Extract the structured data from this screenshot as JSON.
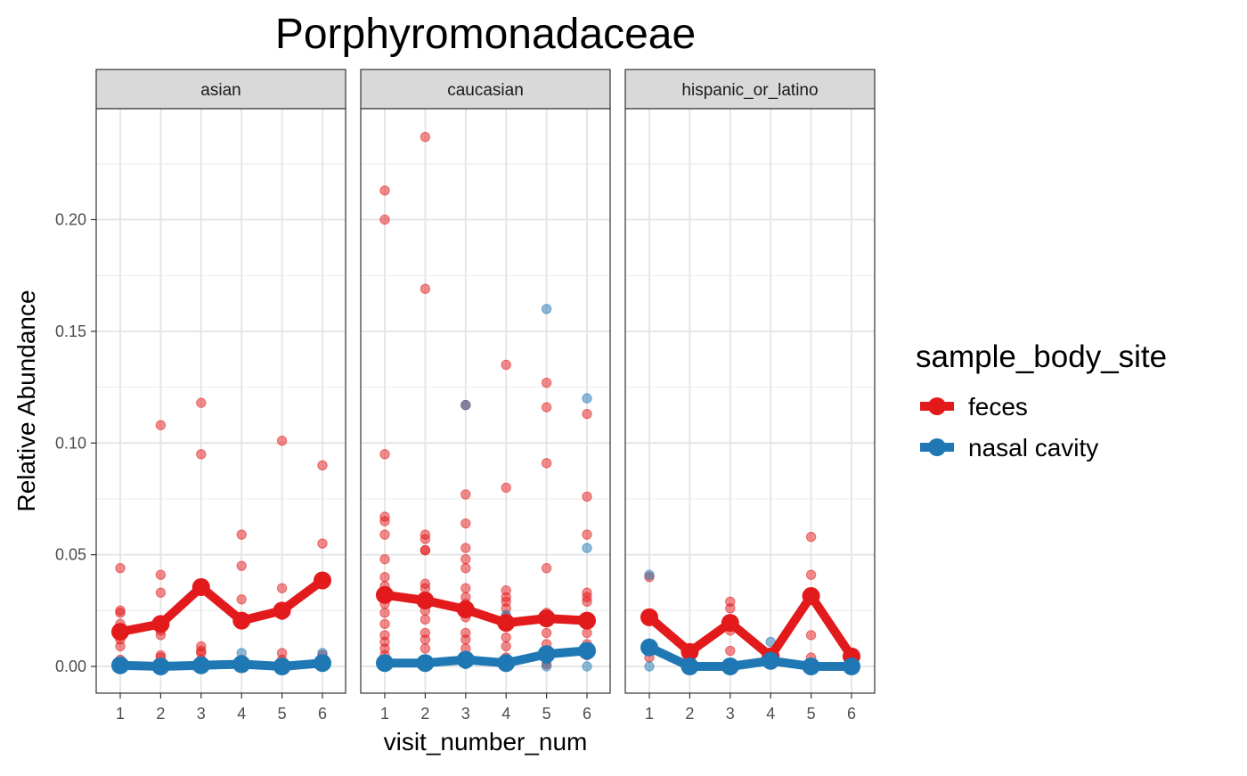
{
  "chart_data": {
    "type": "scatter",
    "title": "Porphyromonadaceae",
    "xlabel": "visit_number_num",
    "ylabel": "Relative Abundance",
    "legend_title": "sample_body_site",
    "legend_position": "right",
    "grid": true,
    "x_ticks": [
      1,
      2,
      3,
      4,
      5,
      6
    ],
    "y_ticks": [
      0.0,
      0.05,
      0.1,
      0.15,
      0.2
    ],
    "y_tick_labels": [
      "0.00",
      "0.05",
      "0.10",
      "0.15",
      "0.20"
    ],
    "ylim": [
      -0.012,
      0.25
    ],
    "xlim": [
      0.6,
      6.4
    ],
    "series_colors": {
      "feces": "#e31a1c",
      "nasal cavity": "#1f78b4"
    },
    "panels": [
      {
        "label": "asian",
        "lines": [
          {
            "name": "feces",
            "x": [
              1,
              2,
              3,
              4,
              5,
              6
            ],
            "y": [
              0.0155,
              0.019,
              0.0355,
              0.0205,
              0.025,
              0.0385
            ]
          },
          {
            "name": "nasal cavity",
            "x": [
              1,
              2,
              3,
              4,
              5,
              6
            ],
            "y": [
              0.0005,
              0.0,
              0.0005,
              0.001,
              0.0,
              0.0015
            ]
          }
        ],
        "points": [
          {
            "name": "feces",
            "x": [
              1,
              1,
              1,
              1,
              1,
              1,
              1,
              2,
              2,
              2,
              2,
              2,
              2,
              2,
              3,
              3,
              3,
              3,
              3,
              3,
              3,
              4,
              4,
              4,
              4,
              4,
              5,
              5,
              5,
              5,
              5,
              6,
              6,
              6,
              6,
              6
            ],
            "y": [
              0.044,
              0.025,
              0.024,
              0.019,
              0.012,
              0.009,
              0.003,
              0.108,
              0.041,
              0.033,
              0.016,
              0.014,
              0.005,
              0.004,
              0.118,
              0.095,
              0.035,
              0.009,
              0.007,
              0.006,
              0.003,
              0.059,
              0.045,
              0.03,
              0.019,
              0.003,
              0.101,
              0.035,
              0.023,
              0.006,
              0.003,
              0.09,
              0.055,
              0.038,
              0.005,
              0.002
            ]
          },
          {
            "name": "nasal cavity",
            "x": [
              1,
              1,
              2,
              3,
              3,
              4,
              4,
              5,
              6,
              6
            ],
            "y": [
              0.002,
              0.0,
              0.0,
              0.001,
              0.0,
              0.006,
              0.0,
              0.0,
              0.006,
              0.0
            ]
          }
        ]
      },
      {
        "label": "caucasian",
        "lines": [
          {
            "name": "feces",
            "x": [
              1,
              2,
              3,
              4,
              5,
              6
            ],
            "y": [
              0.032,
              0.0295,
              0.0255,
              0.0195,
              0.0215,
              0.0205
            ]
          },
          {
            "name": "nasal cavity",
            "x": [
              1,
              2,
              3,
              4,
              5,
              6
            ],
            "y": [
              0.0015,
              0.0015,
              0.003,
              0.0015,
              0.0055,
              0.007
            ]
          }
        ],
        "points": [
          {
            "name": "feces",
            "x": [
              1,
              1,
              1,
              1,
              1,
              1,
              1,
              1,
              1,
              1,
              1,
              1,
              1,
              1,
              1,
              1,
              1,
              2,
              2,
              2,
              2,
              2,
              2,
              2,
              2,
              2,
              2,
              2,
              2,
              2,
              2,
              3,
              3,
              3,
              3,
              3,
              3,
              3,
              3,
              3,
              3,
              3,
              3,
              3,
              3,
              4,
              4,
              4,
              4,
              4,
              4,
              4,
              4,
              4,
              4,
              4,
              5,
              5,
              5,
              5,
              5,
              5,
              5,
              5,
              5,
              5,
              6,
              6,
              6,
              6,
              6,
              6,
              6,
              6,
              6,
              6
            ],
            "y": [
              0.213,
              0.2,
              0.095,
              0.067,
              0.065,
              0.059,
              0.048,
              0.04,
              0.036,
              0.031,
              0.028,
              0.024,
              0.019,
              0.014,
              0.011,
              0.008,
              0.005,
              0.237,
              0.169,
              0.059,
              0.057,
              0.052,
              0.052,
              0.037,
              0.035,
              0.025,
              0.021,
              0.015,
              0.012,
              0.008,
              0.003,
              0.117,
              0.077,
              0.064,
              0.053,
              0.048,
              0.044,
              0.035,
              0.031,
              0.028,
              0.022,
              0.015,
              0.012,
              0.008,
              0.004,
              0.135,
              0.08,
              0.034,
              0.031,
              0.029,
              0.026,
              0.022,
              0.018,
              0.013,
              0.009,
              0.004,
              0.127,
              0.116,
              0.091,
              0.044,
              0.024,
              0.02,
              0.015,
              0.01,
              0.005,
              0.001,
              0.113,
              0.076,
              0.059,
              0.033,
              0.031,
              0.029,
              0.02,
              0.015,
              0.01,
              0.005
            ]
          },
          {
            "name": "nasal cavity",
            "x": [
              1,
              1,
              2,
              2,
              3,
              3,
              3,
              4,
              4,
              5,
              5,
              5,
              6,
              6,
              6
            ],
            "y": [
              0.002,
              0.0,
              0.003,
              0.0,
              0.117,
              0.004,
              0.001,
              0.023,
              0.0,
              0.16,
              0.003,
              0.0,
              0.12,
              0.053,
              0.0
            ]
          }
        ]
      },
      {
        "label": "hispanic_or_latino",
        "lines": [
          {
            "name": "feces",
            "x": [
              1,
              2,
              3,
              4,
              5,
              6
            ],
            "y": [
              0.022,
              0.0065,
              0.0195,
              0.0045,
              0.0315,
              0.0045
            ]
          },
          {
            "name": "nasal cavity",
            "x": [
              1,
              2,
              3,
              4,
              5,
              6
            ],
            "y": [
              0.0085,
              0.0,
              0.0,
              0.0025,
              0.0,
              0.0
            ]
          }
        ],
        "points": [
          {
            "name": "feces",
            "x": [
              1,
              1,
              1,
              2,
              2,
              3,
              3,
              3,
              3,
              4,
              4,
              5,
              5,
              5,
              5,
              5,
              6,
              6
            ],
            "y": [
              0.04,
              0.022,
              0.004,
              0.008,
              0.006,
              0.029,
              0.026,
              0.016,
              0.007,
              0.005,
              0.003,
              0.058,
              0.041,
              0.033,
              0.014,
              0.004,
              0.005,
              0.003
            ]
          },
          {
            "name": "nasal cavity",
            "x": [
              1,
              1,
              1,
              2,
              3,
              4,
              4,
              5,
              6
            ],
            "y": [
              0.041,
              0.009,
              0.0,
              0.0,
              0.0,
              0.011,
              0.001,
              0.0,
              0.0
            ]
          }
        ]
      }
    ]
  }
}
